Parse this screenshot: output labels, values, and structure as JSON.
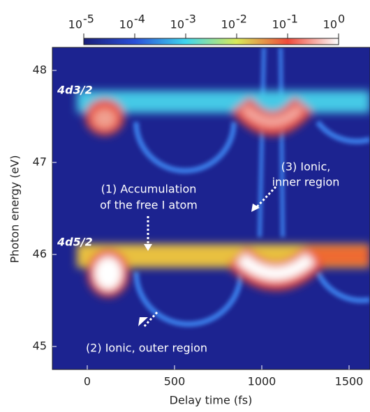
{
  "chart_data": {
    "type": "heatmap",
    "xlabel": "Delay time (fs)",
    "ylabel": "Photon energy (eV)",
    "xlim": [
      -200,
      1620
    ],
    "ylim": [
      44.75,
      48.25
    ],
    "xticks": [
      0,
      500,
      1000,
      1500
    ],
    "yticks": [
      45,
      46,
      47,
      48
    ],
    "colorbar": {
      "scale": "log",
      "lim": [
        1e-05,
        1
      ],
      "ticks": [
        {
          "value": 1e-05,
          "label": "10",
          "exponent": "-5"
        },
        {
          "value": 0.0001,
          "label": "10",
          "exponent": "-4"
        },
        {
          "value": 0.001,
          "label": "10",
          "exponent": "-3"
        },
        {
          "value": 0.01,
          "label": "10",
          "exponent": "-2"
        },
        {
          "value": 0.1,
          "label": "10",
          "exponent": "-1"
        },
        {
          "value": 1,
          "label": "10",
          "exponent": "0"
        }
      ]
    },
    "annotations": [
      "4d3/2",
      "4d5/2",
      "(1) Accumulation",
      "of the free I atom",
      "(2) Ionic, outer region",
      "(3) Ionic,",
      "inner region"
    ]
  }
}
